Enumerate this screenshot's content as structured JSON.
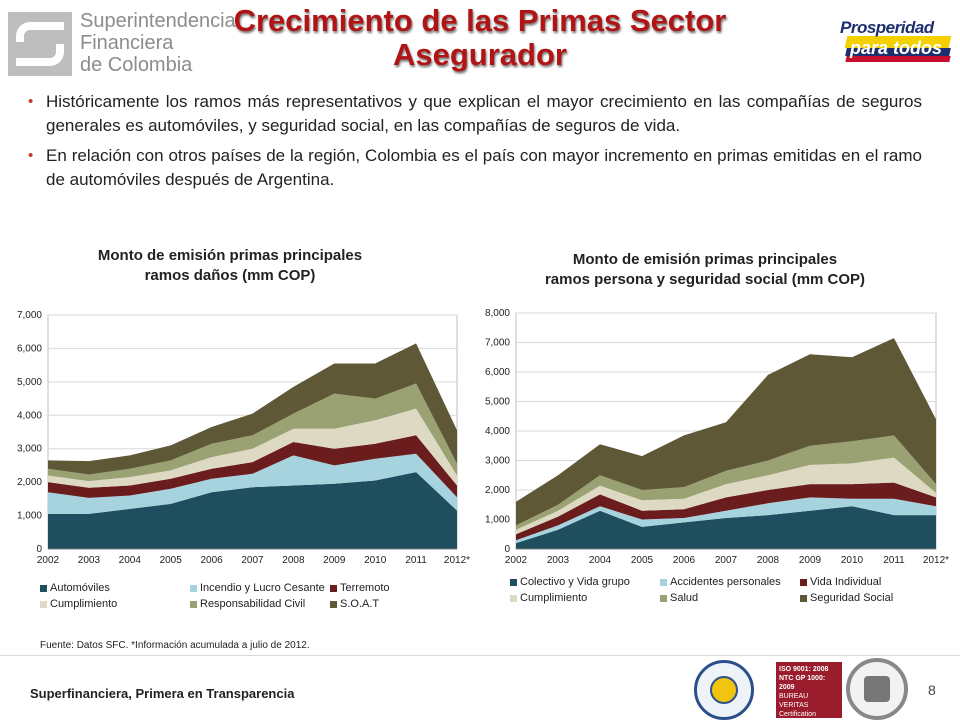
{
  "header": {
    "org_logo_lines": [
      "Superintendencia",
      "Financiera",
      "de Colombia"
    ],
    "title_line1": "Crecimiento de las Primas Sector",
    "title_line2": "Asegurador",
    "slogan_line1": "Prosperidad",
    "slogan_line2": "para todos"
  },
  "bullets": [
    "Históricamente los ramos más representativos y que explican el mayor crecimiento en las compañías de seguros generales es automóviles, y seguridad social, en las compañías de seguros de vida.",
    "En relación con otros países de la región, Colombia es el país con mayor incremento en primas emitidas en el ramo de automóviles después de Argentina."
  ],
  "colors": {
    "title": "#b01414",
    "bullet": "#c0392b",
    "grid": "#d9d9d9"
  },
  "chart_data": [
    {
      "type": "area",
      "stacked": true,
      "title_line1": "Monto de emisión primas principales",
      "title_line2": "ramos daños (mm COP)",
      "categories": [
        "2002",
        "2003",
        "2004",
        "2005",
        "2006",
        "2007",
        "2008",
        "2009",
        "2010",
        "2011",
        "2012*"
      ],
      "ylim": [
        0,
        7000
      ],
      "yticks": [
        0,
        1000,
        2000,
        3000,
        4000,
        5000,
        6000,
        7000
      ],
      "ytick_labels": [
        "0",
        "1,000",
        "2,000",
        "3,000",
        "4,000",
        "5,000",
        "6,000",
        "7,000"
      ],
      "grid": "horizontal",
      "legend_position": "bottom",
      "series": [
        {
          "name": "Automóviles",
          "color": "#1f4e5f",
          "values": [
            1050,
            1050,
            1200,
            1350,
            1700,
            1850,
            1900,
            1950,
            2050,
            2300,
            1150
          ]
        },
        {
          "name": "Incendio y Lucro Cesante",
          "color": "#a7d3df",
          "values": [
            650,
            480,
            400,
            450,
            400,
            400,
            900,
            550,
            650,
            550,
            400
          ]
        },
        {
          "name": "Terremoto",
          "color": "#6b1c1c",
          "values": [
            300,
            300,
            300,
            300,
            300,
            350,
            400,
            500,
            450,
            550,
            350
          ]
        },
        {
          "name": "Cumplimiento",
          "color": "#ddd9c3",
          "values": [
            200,
            200,
            250,
            250,
            350,
            400,
            400,
            600,
            700,
            800,
            300
          ]
        },
        {
          "name": "Responsabilidad Civil",
          "color": "#9aa172",
          "values": [
            200,
            200,
            250,
            300,
            400,
            400,
            450,
            1050,
            650,
            750,
            350
          ]
        },
        {
          "name": "S.O.A.T",
          "color": "#5f5836",
          "values": [
            250,
            400,
            400,
            450,
            500,
            650,
            800,
            900,
            1050,
            1200,
            1000
          ]
        }
      ]
    },
    {
      "type": "area",
      "stacked": true,
      "title_line1": "Monto de emisión primas principales",
      "title_line2": "ramos persona  y seguridad social (mm COP)",
      "categories": [
        "2002",
        "2003",
        "2004",
        "2005",
        "2006",
        "2007",
        "2008",
        "2009",
        "2010",
        "2011",
        "2012*"
      ],
      "ylim": [
        0,
        8000
      ],
      "yticks": [
        0,
        1000,
        2000,
        3000,
        4000,
        5000,
        6000,
        7000,
        8000
      ],
      "ytick_labels": [
        "0",
        "1,000",
        "2,000",
        "3,000",
        "4,000",
        "5,000",
        "6,000",
        "7,000",
        "8,000"
      ],
      "grid": "horizontal",
      "legend_position": "bottom",
      "series": [
        {
          "name": "Colectivo y Vida grupo",
          "color": "#1f4e5f",
          "values": [
            200,
            650,
            1300,
            750,
            900,
            1050,
            1150,
            1300,
            1450,
            1150,
            1150
          ]
        },
        {
          "name": "Accidentes personales",
          "color": "#a7d3df",
          "values": [
            100,
            150,
            150,
            250,
            150,
            250,
            400,
            450,
            250,
            550,
            300
          ]
        },
        {
          "name": "Vida Individual",
          "color": "#6b1c1c",
          "values": [
            200,
            300,
            400,
            300,
            300,
            450,
            450,
            450,
            500,
            550,
            300
          ]
        },
        {
          "name": "Cumplimiento",
          "color": "#ddd9c3",
          "values": [
            150,
            200,
            300,
            350,
            350,
            450,
            500,
            650,
            700,
            850,
            150
          ]
        },
        {
          "name": "Salud",
          "color": "#9aa172",
          "values": [
            150,
            200,
            350,
            350,
            400,
            450,
            500,
            650,
            750,
            750,
            300
          ]
        },
        {
          "name": "Seguridad Social",
          "color": "#5f5836",
          "values": [
            800,
            1000,
            1050,
            1150,
            1750,
            1650,
            2900,
            3100,
            2850,
            3300,
            2200
          ]
        }
      ]
    }
  ],
  "source_note": "Fuente: Datos SFC.  *Información acumulada a  julio de 2012.",
  "footer": {
    "text": "Superfinanciera, Primera en Transparencia",
    "page_number": "8",
    "iso_lines": [
      "ISO 9001: 2008",
      "NTC GP 1000: 2009",
      "BUREAU VERITAS",
      "Certification"
    ]
  }
}
